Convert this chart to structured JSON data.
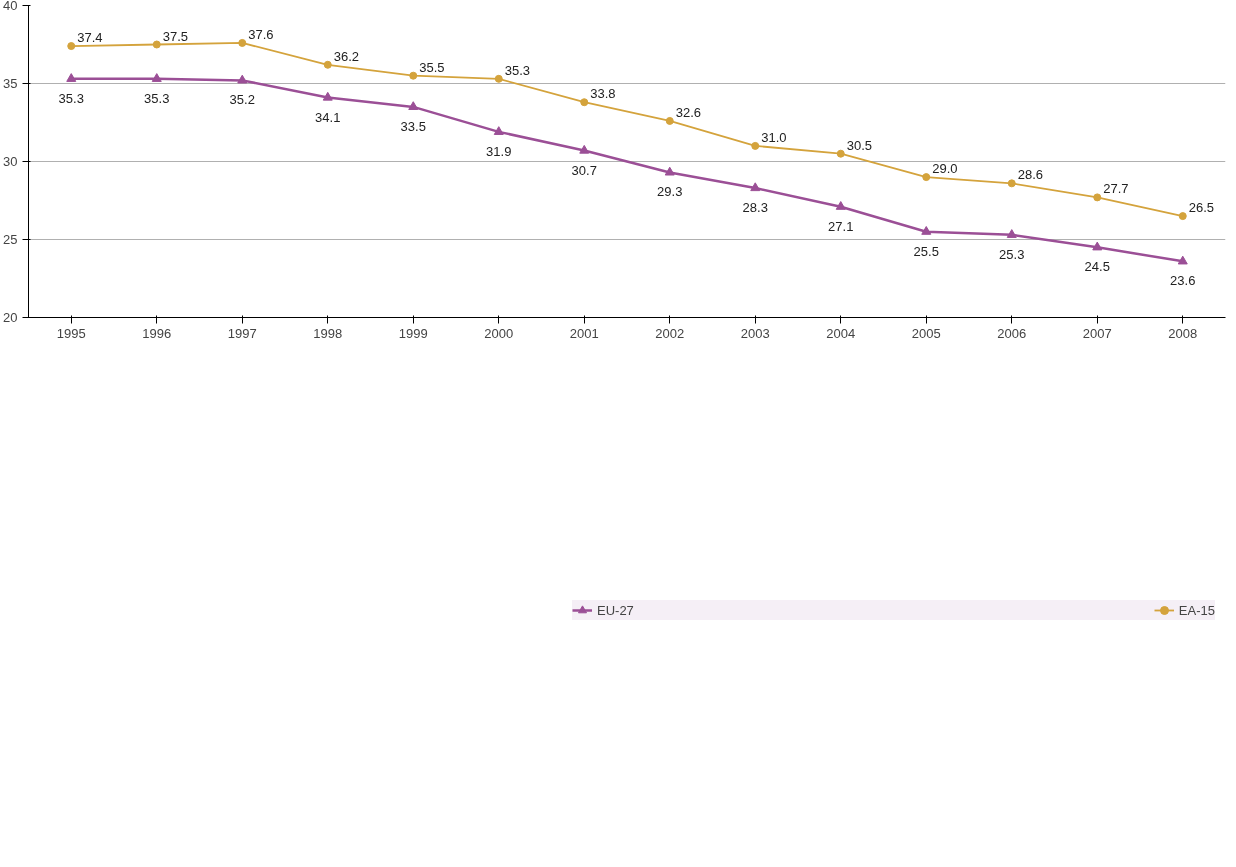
{
  "chart_data": {
    "type": "line",
    "categories": [
      "1995",
      "1996",
      "1997",
      "1998",
      "1999",
      "2000",
      "2001",
      "2002",
      "2003",
      "2004",
      "2005",
      "2006",
      "2007",
      "2008"
    ],
    "series": [
      {
        "name": "EU-27",
        "color": "#9b4f96",
        "marker": "triangle",
        "values": [
          35.3,
          35.3,
          35.2,
          34.1,
          33.5,
          31.9,
          30.7,
          29.3,
          28.3,
          27.1,
          25.5,
          25.3,
          24.5,
          23.6
        ],
        "value_labels": [
          "35.3",
          "35.3",
          "35.2",
          "34.1",
          "33.5",
          "31.9",
          "30.7",
          "29.3",
          "28.3",
          "27.1",
          "25.5",
          "25.3",
          "24.5",
          "23.6"
        ]
      },
      {
        "name": "EA-15",
        "color": "#d4a33c",
        "marker": "circle",
        "values": [
          37.4,
          37.5,
          37.6,
          36.2,
          35.5,
          35.3,
          33.8,
          32.6,
          31.0,
          30.5,
          29.0,
          28.6,
          27.7,
          26.5
        ],
        "value_labels": [
          "37.4",
          "37.5",
          "37.6",
          "36.2",
          "35.5",
          "35.3",
          "33.8",
          "32.6",
          "31.0",
          "30.5",
          "29.0",
          "28.6",
          "27.7",
          "26.5"
        ]
      }
    ],
    "ylim": [
      20,
      40
    ],
    "yticks": [
      20,
      25,
      30,
      35,
      40
    ],
    "grid": "y",
    "legend": "bottom"
  }
}
